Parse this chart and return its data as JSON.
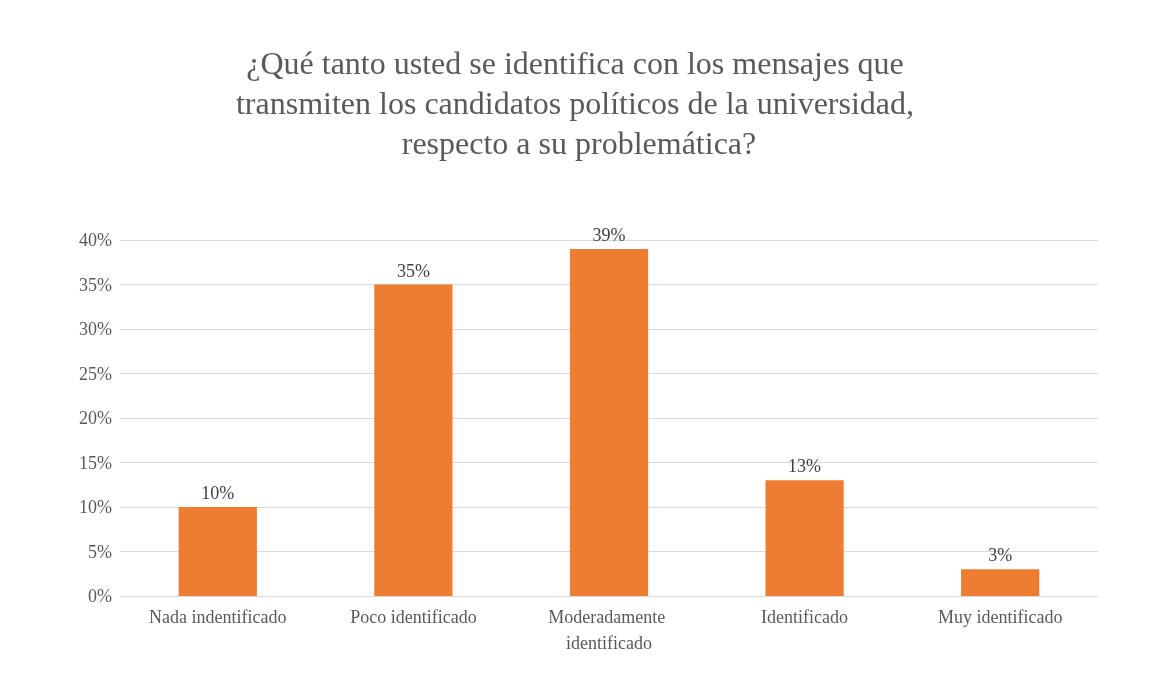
{
  "chart_data": {
    "type": "bar",
    "title": "¿Qué tanto usted se identifica con los mensajes que transmiten los candidatos políticos de la universidad, respecto a su problemática?",
    "categories": [
      "Nada indentificado",
      "Poco identificado",
      "Moderadamente identificado",
      "Identificado",
      "Muy identificado"
    ],
    "values": [
      10,
      35,
      39,
      13,
      3
    ],
    "value_labels": [
      "10%",
      "35%",
      "39%",
      "13%",
      "3%"
    ],
    "color": "#ed7d31",
    "ylim": [
      0,
      40
    ],
    "yticks": [
      {
        "value": 0,
        "label": "0%"
      },
      {
        "value": 5,
        "label": "5%"
      },
      {
        "value": 10,
        "label": "10%"
      },
      {
        "value": 15,
        "label": "15%"
      },
      {
        "value": 20,
        "label": "20%"
      },
      {
        "value": 25,
        "label": "25%"
      },
      {
        "value": 30,
        "label": "30%"
      },
      {
        "value": 35,
        "label": "35%"
      },
      {
        "value": 40,
        "label": "40%"
      }
    ],
    "grid": "y"
  }
}
